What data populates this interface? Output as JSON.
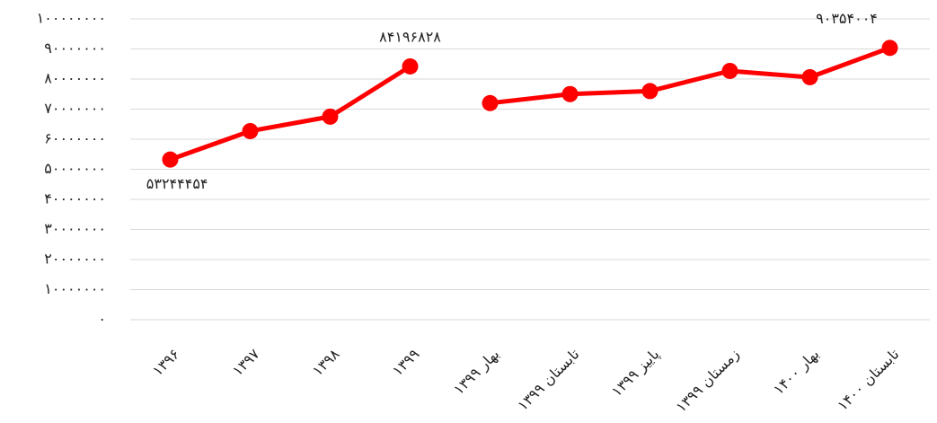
{
  "chart_data": {
    "type": "line",
    "categories": [
      "۱۳۹۶",
      "۱۳۹۷",
      "۱۳۹۸",
      "۱۳۹۹",
      "بهار ۱۳۹۹",
      "تابستان ۱۳۹۹",
      "پاییز ۱۳۹۹",
      "زمستان ۱۳۹۹",
      "بهار ۱۴۰۰",
      "تابستان ۱۴۰۰"
    ],
    "series": [
      {
        "color": "#ff0000",
        "values": [
          53244454,
          62700000,
          67500000,
          84196828,
          null,
          null,
          null,
          null,
          null,
          null
        ],
        "value_labels": [
          "۵۳۲۴۴۴۵۴",
          null,
          null,
          "۸۴۱۹۶۸۲۸",
          null,
          null,
          null,
          null,
          null,
          null
        ]
      },
      {
        "color": "#ff0000",
        "values": [
          null,
          null,
          null,
          null,
          72000000,
          75000000,
          76000000,
          82700000,
          80600000,
          90354004
        ],
        "value_labels": [
          null,
          null,
          null,
          null,
          null,
          null,
          null,
          null,
          null,
          "۹۰۳۵۴۰۰۴"
        ]
      }
    ],
    "ylim": [
      0,
      100000000
    ],
    "yticks": [
      {
        "value": 0,
        "label": "۰"
      },
      {
        "value": 10000000,
        "label": "۱۰۰۰۰۰۰۰"
      },
      {
        "value": 20000000,
        "label": "۲۰۰۰۰۰۰۰"
      },
      {
        "value": 30000000,
        "label": "۳۰۰۰۰۰۰۰"
      },
      {
        "value": 40000000,
        "label": "۴۰۰۰۰۰۰۰"
      },
      {
        "value": 50000000,
        "label": "۵۰۰۰۰۰۰۰"
      },
      {
        "value": 60000000,
        "label": "۶۰۰۰۰۰۰۰"
      },
      {
        "value": 70000000,
        "label": "۷۰۰۰۰۰۰۰"
      },
      {
        "value": 80000000,
        "label": "۸۰۰۰۰۰۰۰"
      },
      {
        "value": 90000000,
        "label": "۹۰۰۰۰۰۰۰"
      },
      {
        "value": 100000000,
        "label": "۱۰۰۰۰۰۰۰۰"
      }
    ],
    "grid": true
  }
}
